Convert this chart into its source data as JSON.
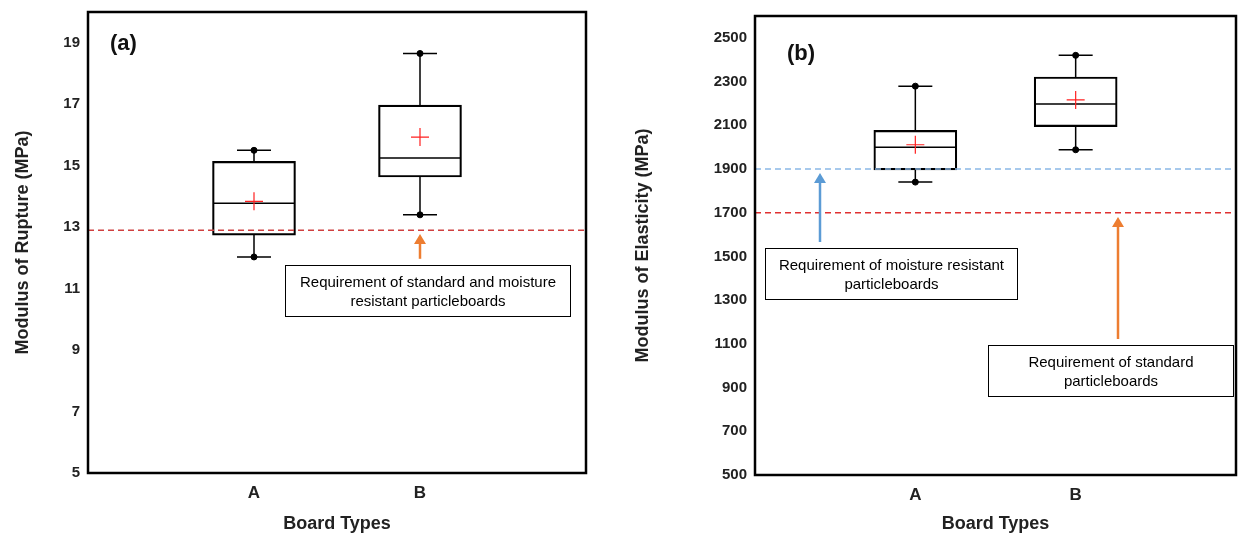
{
  "chart_data": [
    {
      "type": "box",
      "categories": [
        "A",
        "B"
      ],
      "ylabel": "Modulus of Rupture (MPa)",
      "xlabel": "Board Types",
      "ylim": [
        5,
        20
      ],
      "yticks": [
        5,
        7,
        9,
        11,
        13,
        15,
        17,
        19
      ],
      "grid": false,
      "legend": false,
      "annotations": [
        "(a)",
        "Requirement of standard and moisture resistant particleboards"
      ],
      "boxes": [
        {
          "low": 12.03,
          "q1": 12.74,
          "median": 13.78,
          "q3": 15.14,
          "high": 15.5,
          "mean": 13.84
        },
        {
          "low": 13.4,
          "q1": 14.63,
          "median": 15.25,
          "q3": 16.97,
          "high": 18.65,
          "mean": 15.93
        }
      ],
      "series": [
        {
          "type": "scatter",
          "x": [
            "A",
            "B",
            "A",
            "B"
          ],
          "values": [
            15.5,
            18.65,
            12.03,
            13.4
          ],
          "color": "#000000",
          "marker": "circle"
        }
      ],
      "ref_lines": [
        {
          "axis": "y",
          "value": 12.9,
          "color": "#d04040",
          "line_style": "dashed"
        }
      ]
    },
    {
      "type": "box",
      "categories": [
        "A",
        "B"
      ],
      "ylabel": "Modulus of Elasticity (MPa)",
      "xlabel": "Board Types",
      "ylim": [
        500,
        2600
      ],
      "yticks": [
        500,
        700,
        900,
        1100,
        1300,
        1500,
        1700,
        1900,
        2100,
        2300,
        2500
      ],
      "grid": false,
      "legend": false,
      "annotations": [
        "(b)",
        "Requirement of moisture resistant particleboards",
        "Requirement of standard particleboards"
      ],
      "boxes": [
        {
          "low": 1840,
          "q1": 1896,
          "median": 1999,
          "q3": 2077,
          "high": 2279,
          "mean": 2011
        },
        {
          "low": 1988,
          "q1": 2094,
          "median": 2197,
          "q3": 2321,
          "high": 2420,
          "mean": 2216
        }
      ],
      "series": [
        {
          "type": "scatter",
          "x": [
            "A",
            "B",
            "A",
            "B"
          ],
          "values": [
            2279,
            2420,
            1840,
            1988
          ],
          "color": "#000000",
          "marker": "circle"
        }
      ],
      "ref_lines": [
        {
          "axis": "y",
          "value": 1900,
          "color": "#8ab8e6",
          "line_style": "dashed"
        },
        {
          "axis": "y",
          "value": 1700,
          "color": "#e03030",
          "line_style": "dashed"
        }
      ]
    }
  ]
}
